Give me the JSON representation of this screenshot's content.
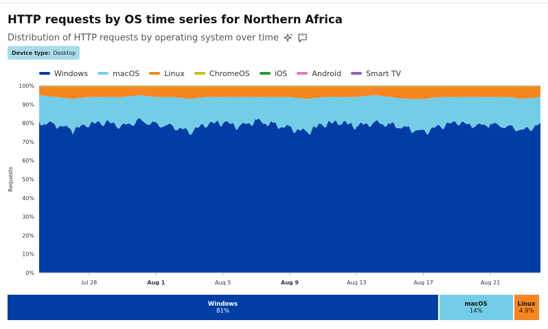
{
  "title": "HTTP requests by OS time series for Northern Africa",
  "subtitle": "Distribution of HTTP requests by operating system over time",
  "icons": {
    "sparkle": "sparkle-icon",
    "quote": "quote-icon"
  },
  "filter": {
    "label": "Device type:",
    "value": "Desktop"
  },
  "legend": [
    {
      "name": "Windows",
      "color": "#003da5"
    },
    {
      "name": "macOS",
      "color": "#73cde6"
    },
    {
      "name": "Linux",
      "color": "#f78520"
    },
    {
      "name": "ChromeOS",
      "color": "#c2c20d"
    },
    {
      "name": "iOS",
      "color": "#1f9e2c"
    },
    {
      "name": "Android",
      "color": "#e879b9"
    },
    {
      "name": "Smart TV",
      "color": "#8c5dbf"
    }
  ],
  "chart_data": {
    "type": "area",
    "stacked": true,
    "percent": true,
    "ylabel": "Requests",
    "ylim": [
      0,
      100
    ],
    "yticks": [
      "0%",
      "10%",
      "20%",
      "30%",
      "40%",
      "50%",
      "60%",
      "70%",
      "80%",
      "90%",
      "100%"
    ],
    "xlim": [
      "2024-07-25",
      "2024-08-24"
    ],
    "xticks": [
      {
        "label": "Jul 28",
        "date": "2024-07-28",
        "bold": false
      },
      {
        "label": "Aug 1",
        "date": "2024-08-01",
        "bold": true
      },
      {
        "label": "Aug 5",
        "date": "2024-08-05",
        "bold": false
      },
      {
        "label": "Aug 9",
        "date": "2024-08-09",
        "bold": true
      },
      {
        "label": "Aug 13",
        "date": "2024-08-13",
        "bold": false
      },
      {
        "label": "Aug 17",
        "date": "2024-08-17",
        "bold": false
      },
      {
        "label": "Aug 21",
        "date": "2024-08-21",
        "bold": false
      }
    ],
    "x": [
      "2024-07-25",
      "2024-07-26",
      "2024-07-27",
      "2024-07-28",
      "2024-07-29",
      "2024-07-30",
      "2024-07-31",
      "2024-08-01",
      "2024-08-02",
      "2024-08-03",
      "2024-08-04",
      "2024-08-05",
      "2024-08-06",
      "2024-08-07",
      "2024-08-08",
      "2024-08-09",
      "2024-08-10",
      "2024-08-11",
      "2024-08-12",
      "2024-08-13",
      "2024-08-14",
      "2024-08-15",
      "2024-08-16",
      "2024-08-17",
      "2024-08-18",
      "2024-08-19",
      "2024-08-20",
      "2024-08-21",
      "2024-08-22",
      "2024-08-23",
      "2024-08-24"
    ],
    "series": [
      {
        "name": "Windows",
        "values": [
          81,
          80,
          77,
          80,
          81,
          79,
          82,
          80,
          79,
          76,
          80,
          81,
          79,
          82,
          80,
          78,
          76,
          80,
          81,
          79,
          81,
          80,
          78,
          76,
          79,
          81,
          79,
          80,
          79,
          77,
          80
        ]
      },
      {
        "name": "macOS",
        "values": [
          14,
          14,
          16,
          14,
          13,
          15,
          13,
          14,
          15,
          17,
          14,
          13,
          15,
          12,
          14,
          16,
          17,
          14,
          13,
          15,
          14,
          14,
          15,
          17,
          15,
          13,
          15,
          14,
          15,
          16,
          14
        ]
      },
      {
        "name": "Linux",
        "values": [
          4.5,
          5.5,
          6.5,
          5.5,
          5.5,
          5.5,
          4.5,
          5.5,
          5.5,
          6.5,
          5.5,
          5.5,
          5.5,
          5.5,
          5.5,
          5.5,
          6.5,
          5.5,
          5.5,
          5.5,
          4.5,
          5.5,
          6.5,
          6.5,
          5.5,
          5.5,
          5.5,
          5.5,
          5.5,
          6.5,
          5.5
        ]
      },
      {
        "name": "ChromeOS",
        "values": [
          0.3,
          0.3,
          0.3,
          0.3,
          0.3,
          0.3,
          0.3,
          0.3,
          0.3,
          0.3,
          0.3,
          0.3,
          0.3,
          0.3,
          0.3,
          0.3,
          0.3,
          0.3,
          0.3,
          0.3,
          0.3,
          0.3,
          0.3,
          0.3,
          0.3,
          0.3,
          0.3,
          0.3,
          0.3,
          0.3,
          0.3
        ]
      },
      {
        "name": "iOS",
        "values": [
          0.1,
          0.1,
          0.1,
          0.1,
          0.1,
          0.1,
          0.1,
          0.1,
          0.1,
          0.1,
          0.1,
          0.1,
          0.1,
          0.1,
          0.1,
          0.1,
          0.1,
          0.1,
          0.1,
          0.1,
          0.1,
          0.1,
          0.1,
          0.1,
          0.1,
          0.1,
          0.1,
          0.1,
          0.1,
          0.1,
          0.1
        ]
      },
      {
        "name": "Android",
        "values": [
          0.05,
          0.05,
          0.05,
          0.05,
          0.05,
          0.05,
          0.05,
          0.05,
          0.05,
          0.05,
          0.05,
          0.05,
          0.05,
          0.05,
          0.05,
          0.05,
          0.05,
          0.05,
          0.05,
          0.05,
          0.05,
          0.05,
          0.05,
          0.05,
          0.05,
          0.05,
          0.05,
          0.05,
          0.05,
          0.05,
          0.05
        ]
      },
      {
        "name": "Smart TV",
        "values": [
          0.05,
          0.05,
          0.05,
          0.05,
          0.05,
          0.05,
          0.05,
          0.05,
          0.05,
          0.05,
          0.05,
          0.05,
          0.05,
          0.05,
          0.05,
          0.05,
          0.05,
          0.05,
          0.05,
          0.05,
          0.05,
          0.05,
          0.05,
          0.05,
          0.05,
          0.05,
          0.05,
          0.05,
          0.05,
          0.05,
          0.05
        ]
      }
    ],
    "share_summary": [
      {
        "name": "Windows",
        "value": 81,
        "label": "81%",
        "color": "#003da5",
        "text_color": "#ffffff"
      },
      {
        "name": "macOS",
        "value": 14,
        "label": "14%",
        "color": "#73cde6",
        "text_color": "#111111"
      },
      {
        "name": "Linux",
        "value": 4.9,
        "label": "4.9%",
        "color": "#f78520",
        "text_color": "#111111"
      },
      {
        "name": "ChromeOS",
        "value": 0.3,
        "label": "",
        "color": "#c2c20d",
        "text_color": "#111111"
      }
    ]
  }
}
